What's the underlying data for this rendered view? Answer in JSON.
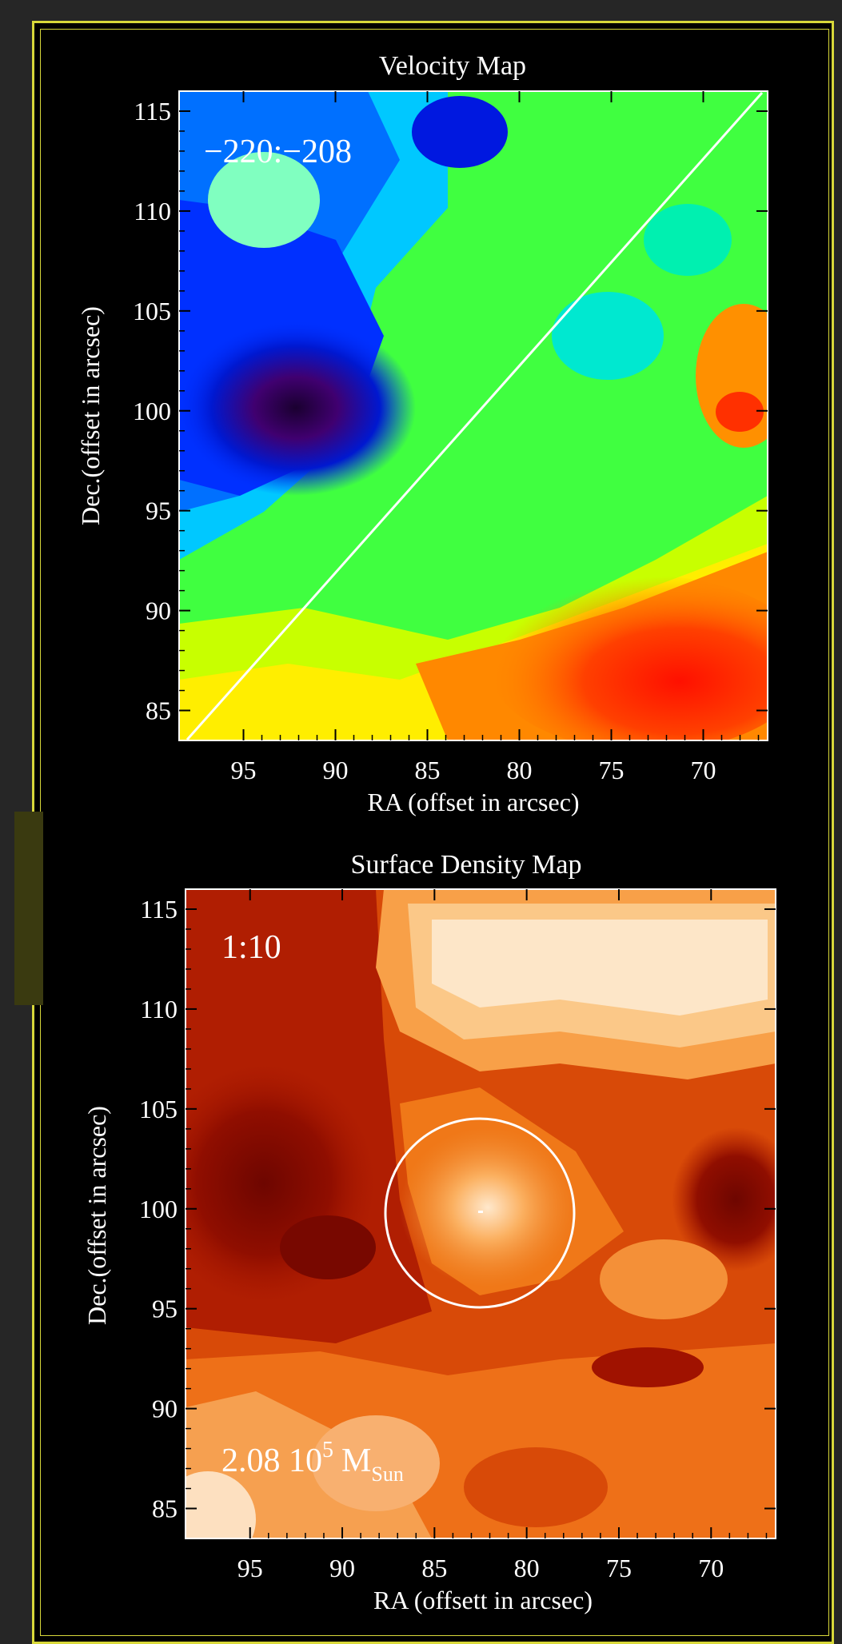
{
  "chart_data": [
    {
      "type": "heatmap",
      "title": "Velocity Map",
      "xlabel": "RA (offset in arcsec)",
      "ylabel": "Dec.(offset in arcsec)",
      "x_ticks": [
        "95",
        "90",
        "85",
        "80",
        "75",
        "70"
      ],
      "y_ticks": [
        "115",
        "110",
        "105",
        "100",
        "95",
        "90",
        "85"
      ],
      "xlim": [
        98.5,
        66.5
      ],
      "ylim": [
        83.5,
        116
      ],
      "annotation": "−220:−208",
      "colormap": "rainbow (dark blue low, red high)",
      "overlay_line": {
        "from": [
          98.2,
          83.7
        ],
        "to": [
          66.9,
          115.8
        ]
      },
      "colors": {
        "low": "#2a0040",
        "mid": "#00ff70",
        "high": "#ff2200"
      }
    },
    {
      "type": "heatmap",
      "title": "Surface Density Map",
      "xlabel": "RA (offsett in arcsec)",
      "ylabel": "Dec.(offset in arcsec)",
      "x_ticks": [
        "95",
        "90",
        "85",
        "80",
        "75",
        "70"
      ],
      "y_ticks": [
        "115",
        "110",
        "105",
        "100",
        "95",
        "90",
        "85"
      ],
      "xlim": [
        98.5,
        66.5
      ],
      "ylim": [
        83.5,
        116
      ],
      "annotation": "1:10",
      "mass_label": {
        "value": "2.08 10",
        "exponent": "5",
        "unit": "M",
        "unit_subscript": "Sun"
      },
      "colormap": "red-orange-cream",
      "overlay_circle": {
        "center": [
          81.8,
          99.7
        ],
        "radius_arcsec": 5.2
      },
      "colors": {
        "low": "#7a0a00",
        "mid": "#f07818",
        "high": "#fde6c8"
      }
    }
  ]
}
